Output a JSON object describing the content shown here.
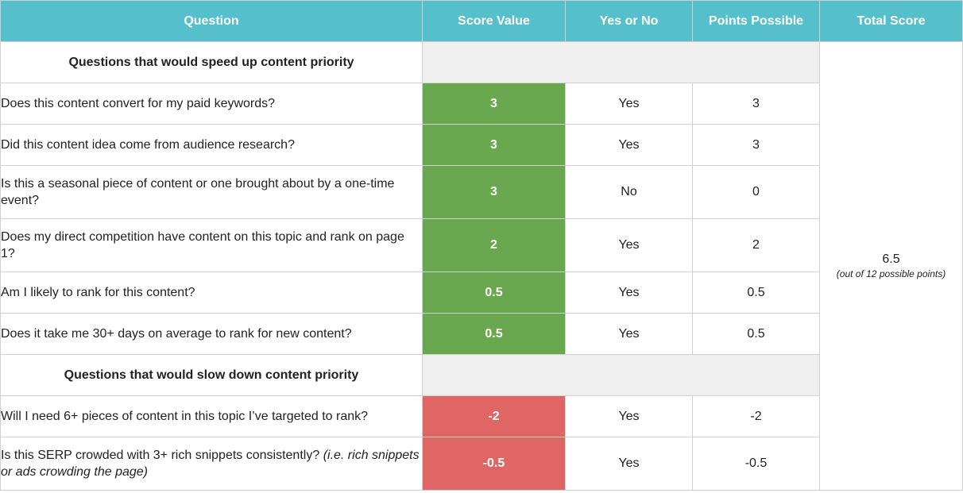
{
  "headers": {
    "question": "Question",
    "score_value": "Score Value",
    "yes_no": "Yes or No",
    "points_possible": "Points Possible",
    "total_score": "Total Score"
  },
  "sections": [
    {
      "title": "Questions that would speed up content priority",
      "rows": [
        {
          "question": "Does this content convert for my paid keywords?",
          "note": "",
          "score": "3",
          "answer": "Yes",
          "points": "3"
        },
        {
          "question": "Did this content idea come from audience research?",
          "note": "",
          "score": "3",
          "answer": "Yes",
          "points": "3"
        },
        {
          "question": "Is this a seasonal piece of content or one brought about by a one-time event?",
          "note": "",
          "score": "3",
          "answer": "No",
          "points": "0"
        },
        {
          "question": "Does my direct competition have content on this topic and rank on page 1?",
          "note": "",
          "score": "2",
          "answer": "Yes",
          "points": "2"
        },
        {
          "question": "Am I likely to rank for this content?",
          "note": "",
          "score": "0.5",
          "answer": "Yes",
          "points": "0.5"
        },
        {
          "question": "Does it take me 30+ days on average to rank for new content?",
          "note": "",
          "score": "0.5",
          "answer": "Yes",
          "points": "0.5"
        }
      ]
    },
    {
      "title": "Questions that would slow down content priority",
      "rows": [
        {
          "question": "Will I need 6+ pieces of content in this topic I’ve targeted to rank?",
          "note": "",
          "score": "-2",
          "answer": "Yes",
          "points": "-2"
        },
        {
          "question": "Is this SERP crowded with 3+ rich snippets consistently?",
          "note": "(i.e. rich snippets or ads crowding the page)",
          "score": "-0.5",
          "answer": "Yes",
          "points": "-0.5"
        }
      ]
    }
  ],
  "total": {
    "value": "6.5",
    "note": "(out of 12 possible points)"
  },
  "colors": {
    "header_bg": "#55c0cb",
    "positive_score_bg": "#6aa84f",
    "negative_score_bg": "#e06666",
    "section_fill": "#efefef"
  }
}
